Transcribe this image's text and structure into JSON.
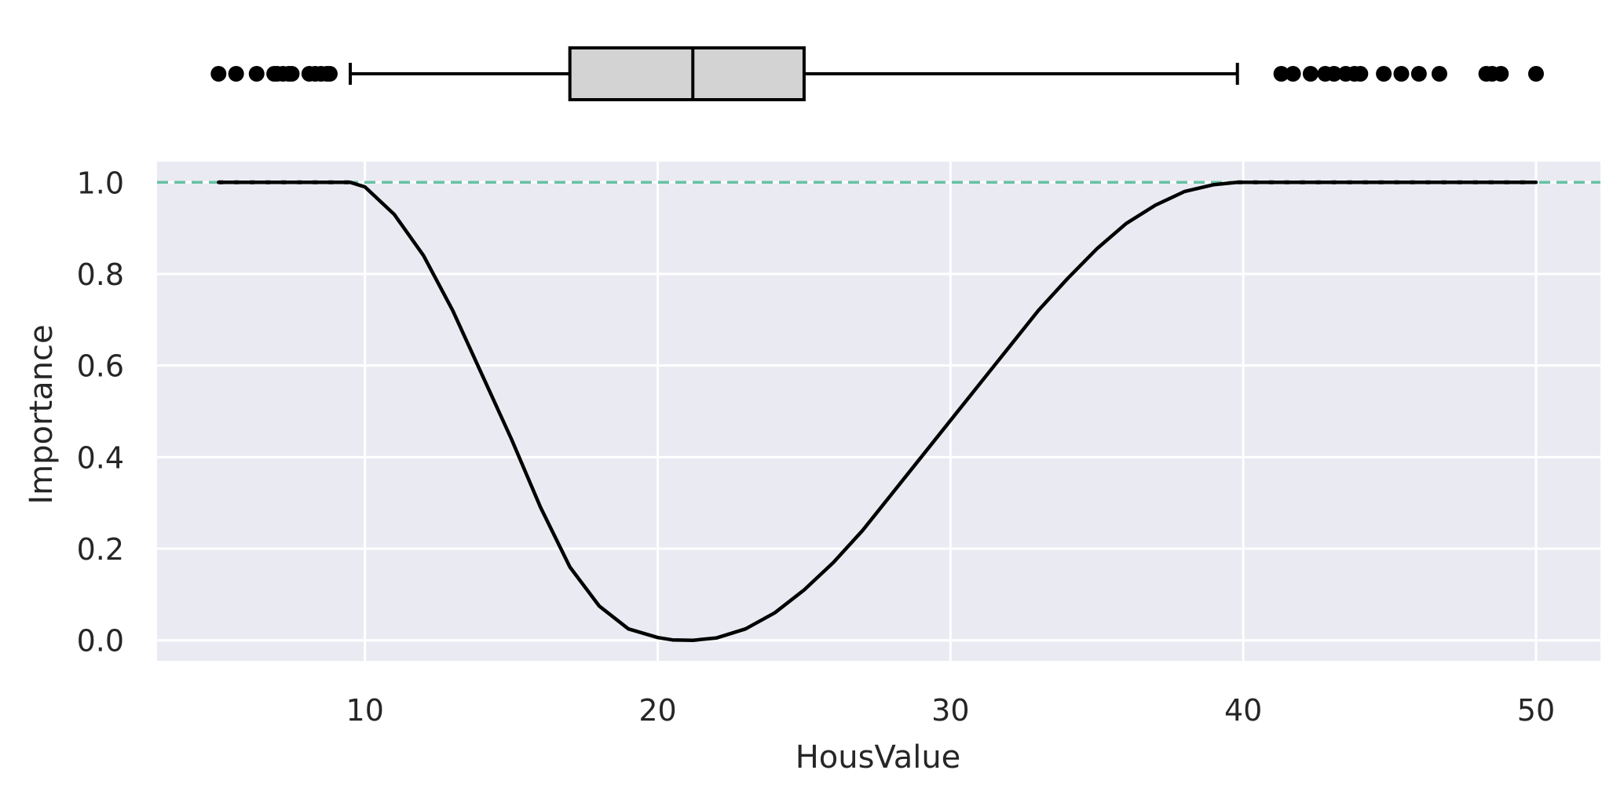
{
  "chart_data": [
    {
      "type": "box",
      "orientation": "horizontal",
      "xlim": [
        2.9,
        52.2
      ],
      "whisker_low": 9.5,
      "q1": 17.0,
      "median": 21.2,
      "q3": 25.0,
      "whisker_high": 39.8,
      "outliers_low": [
        5.0,
        5.6,
        6.3,
        6.9,
        7.0,
        7.2,
        7.4,
        7.5,
        8.1,
        8.3,
        8.5,
        8.7,
        8.8
      ],
      "outliers_high": [
        41.3,
        41.7,
        42.3,
        42.8,
        43.1,
        43.5,
        43.8,
        44.0,
        44.8,
        45.4,
        46.0,
        46.7,
        48.3,
        48.5,
        48.8,
        50.0
      ],
      "box_color": "#d3d3d3",
      "line_color": "#000000"
    },
    {
      "type": "line",
      "title": "",
      "xlabel": "HousValue",
      "ylabel": "Importance",
      "xlim": [
        2.9,
        52.2
      ],
      "ylim": [
        -0.045,
        1.045
      ],
      "xticks": [
        "10",
        "20",
        "30",
        "40",
        "50"
      ],
      "yticks": [
        "0.0",
        "0.2",
        "0.4",
        "0.6",
        "0.8",
        "1.0"
      ],
      "grid": true,
      "background": "#eaeaf2",
      "reference_line": {
        "y": 1.0,
        "style": "dashed",
        "color": "#66c2a5"
      },
      "series": [
        {
          "color": "#000000",
          "x": [
            5.0,
            9.5,
            10.0,
            11.0,
            12.0,
            13.0,
            14.0,
            15.0,
            16.0,
            17.0,
            18.0,
            19.0,
            20.0,
            20.5,
            21.2,
            22.0,
            23.0,
            24.0,
            25.0,
            26.0,
            27.0,
            28.0,
            29.0,
            30.0,
            31.0,
            32.0,
            33.0,
            34.0,
            35.0,
            36.0,
            37.0,
            38.0,
            39.0,
            39.8,
            50.0
          ],
          "y": [
            1.0,
            1.0,
            0.99,
            0.93,
            0.84,
            0.72,
            0.58,
            0.44,
            0.29,
            0.16,
            0.075,
            0.025,
            0.006,
            0.001,
            0.0,
            0.005,
            0.025,
            0.06,
            0.11,
            0.17,
            0.24,
            0.32,
            0.4,
            0.48,
            0.56,
            0.64,
            0.72,
            0.79,
            0.855,
            0.91,
            0.95,
            0.98,
            0.995,
            1.0,
            1.0
          ]
        }
      ],
      "rug_markers": {
        "y": 1.0,
        "x_ranges": [
          [
            5.0,
            9.5
          ],
          [
            39.8,
            50.0
          ]
        ],
        "color": "#000000"
      }
    }
  ]
}
